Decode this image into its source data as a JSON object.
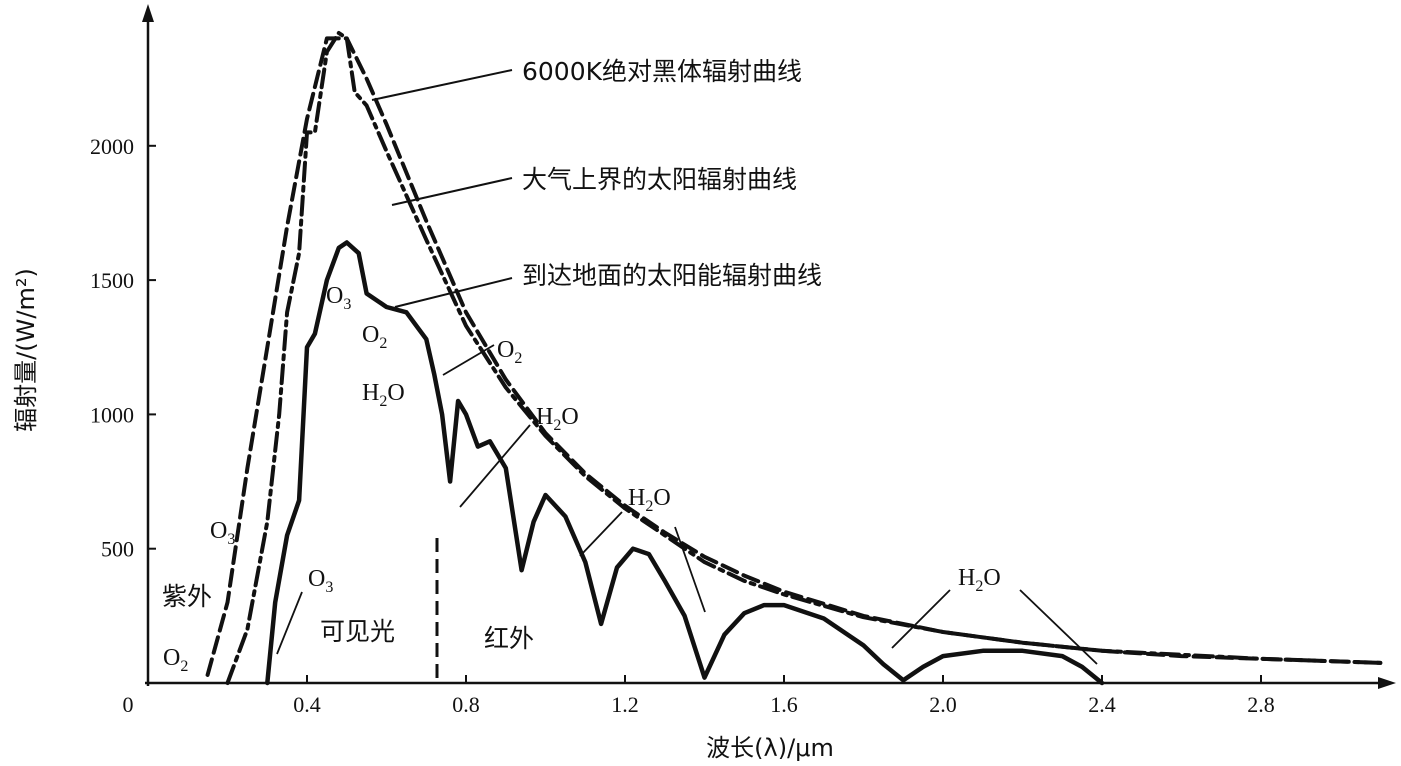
{
  "chart_data": {
    "type": "line",
    "xlabel": "波长(λ)/μm",
    "ylabel": "辐射量/(W/m²)",
    "xlim": [
      0,
      3.1
    ],
    "ylim": [
      0,
      2450
    ],
    "x_ticks": [
      0,
      0.4,
      0.8,
      1.2,
      1.6,
      2.0,
      2.4,
      2.8
    ],
    "x_tick_labels": [
      "0",
      "0.4",
      "0.8",
      "1.2",
      "1.6",
      "2.0",
      "2.4",
      "2.8"
    ],
    "y_ticks": [
      500,
      1000,
      1500,
      2000
    ],
    "y_tick_labels": [
      "500",
      "1000",
      "1500",
      "2000"
    ],
    "series": [
      {
        "name": "6000K绝对黑体辐射曲线",
        "style": "dashed",
        "x": [
          0.15,
          0.2,
          0.25,
          0.3,
          0.35,
          0.4,
          0.45,
          0.5,
          0.55,
          0.6,
          0.7,
          0.8,
          0.9,
          1.0,
          1.1,
          1.2,
          1.3,
          1.4,
          1.5,
          1.6,
          1.8,
          2.0,
          2.2,
          2.4,
          2.6,
          2.8,
          3.0,
          3.1
        ],
        "y": [
          30,
          300,
          800,
          1250,
          1700,
          2100,
          2400,
          2400,
          2250,
          2080,
          1720,
          1380,
          1130,
          930,
          780,
          660,
          560,
          470,
          400,
          340,
          250,
          190,
          150,
          120,
          100,
          90,
          80,
          75
        ]
      },
      {
        "name": "大气上界的太阳辐射曲线",
        "style": "dashdot",
        "x": [
          0.2,
          0.25,
          0.3,
          0.33,
          0.35,
          0.38,
          0.4,
          0.42,
          0.45,
          0.48,
          0.5,
          0.52,
          0.55,
          0.6,
          0.7,
          0.8,
          0.9,
          1.0,
          1.1,
          1.2,
          1.3,
          1.4,
          1.5,
          1.6,
          1.8,
          2.0,
          2.2,
          2.4,
          2.6,
          2.8,
          3.0,
          3.1
        ],
        "y": [
          0,
          200,
          600,
          1000,
          1380,
          1600,
          2050,
          2050,
          2350,
          2420,
          2400,
          2200,
          2150,
          1980,
          1650,
          1330,
          1100,
          920,
          770,
          650,
          550,
          450,
          380,
          330,
          245,
          190,
          150,
          120,
          105,
          90,
          80,
          75
        ]
      },
      {
        "name": "到达地面的太阳能辐射曲线",
        "style": "solid",
        "x": [
          0.3,
          0.32,
          0.35,
          0.38,
          0.4,
          0.42,
          0.45,
          0.48,
          0.5,
          0.53,
          0.55,
          0.6,
          0.65,
          0.68,
          0.7,
          0.72,
          0.74,
          0.76,
          0.78,
          0.8,
          0.83,
          0.86,
          0.9,
          0.94,
          0.97,
          1.0,
          1.05,
          1.1,
          1.14,
          1.18,
          1.22,
          1.26,
          1.3,
          1.35,
          1.4,
          1.45,
          1.5,
          1.55,
          1.6,
          1.7,
          1.8,
          1.85,
          1.9,
          1.95,
          2.0,
          2.1,
          2.2,
          2.3,
          2.35,
          2.4
        ],
        "y": [
          0,
          300,
          550,
          680,
          1250,
          1300,
          1500,
          1620,
          1640,
          1600,
          1450,
          1400,
          1380,
          1320,
          1280,
          1150,
          1000,
          750,
          1050,
          1000,
          880,
          900,
          800,
          420,
          600,
          700,
          620,
          450,
          220,
          430,
          500,
          480,
          380,
          250,
          20,
          180,
          260,
          290,
          290,
          240,
          140,
          70,
          10,
          60,
          100,
          120,
          120,
          100,
          60,
          0
        ]
      }
    ],
    "annotations": [
      {
        "text": "6000K绝对黑体辐射曲线",
        "series": 0
      },
      {
        "text": "大气上界的太阳辐射曲线",
        "series": 1
      },
      {
        "text": "到达地面的太阳能辐射曲线",
        "series": 2
      }
    ],
    "absorption_labels": [
      {
        "species": "O",
        "sub": "3",
        "at": "ultraviolet"
      },
      {
        "species": "O",
        "sub": "2",
        "at": "ultraviolet"
      },
      {
        "species": "O",
        "sub": "3",
        "at": "0.4"
      },
      {
        "species": "O",
        "sub": "3",
        "at": "0.55"
      },
      {
        "species": "O",
        "sub": "2",
        "at": "0.7"
      },
      {
        "species": "H",
        "sub": "2",
        "tail": "O",
        "at": "0.76"
      },
      {
        "species": "O",
        "sub": "2",
        "at": "0.9"
      },
      {
        "species": "H",
        "sub": "2",
        "tail": "O",
        "at": "1.1"
      },
      {
        "species": "H",
        "sub": "2",
        "tail": "O",
        "at": "1.4"
      },
      {
        "species": "H",
        "sub": "2",
        "tail": "O",
        "at": "1.9"
      }
    ],
    "region_labels": [
      "紫外",
      "可见光",
      "红外"
    ]
  }
}
